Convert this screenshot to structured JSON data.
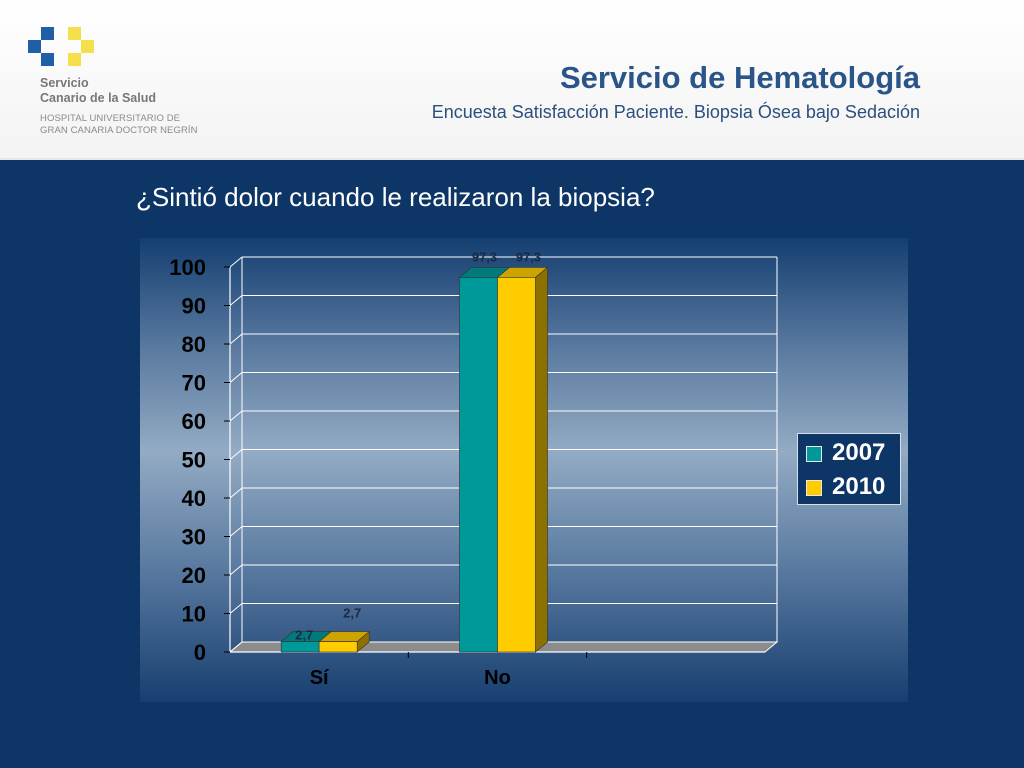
{
  "header": {
    "org_line1": "Servicio",
    "org_line2": "Canario de la Salud",
    "hospital_line1": "HOSPITAL UNIVERSITARIO DE",
    "hospital_line2": "GRAN CANARIA DOCTOR NEGRÍN",
    "title": "Servicio de Hematología",
    "subtitle": "Encuesta Satisfacción Paciente. Biopsia Ósea bajo Sedación",
    "logo": "scs-cross-logo"
  },
  "question": "¿Sintió dolor cuando le realizaron la biopsia?",
  "colors": {
    "background": "#0d3566",
    "series_2007": "#009999",
    "series_2010": "#ffcc00",
    "logo_blue": "#1f5fa8",
    "logo_yellow": "#f5e04c"
  },
  "chart_data": {
    "type": "bar",
    "title": "",
    "xlabel": "",
    "ylabel": "",
    "categories": [
      "Sí",
      "No",
      ""
    ],
    "series": [
      {
        "name": "2007",
        "values": [
          2.7,
          97.3,
          null
        ],
        "labels": [
          "2,7",
          "97,3",
          ""
        ]
      },
      {
        "name": "2010",
        "values": [
          2.7,
          97.3,
          null
        ],
        "labels": [
          "2,7",
          "97,3",
          ""
        ]
      }
    ],
    "ylim": [
      0,
      100
    ],
    "yticks": [
      "0",
      "10",
      "20",
      "30",
      "40",
      "50",
      "60",
      "70",
      "80",
      "90",
      "100"
    ],
    "grid": true,
    "legend_position": "right",
    "three_d": true
  }
}
